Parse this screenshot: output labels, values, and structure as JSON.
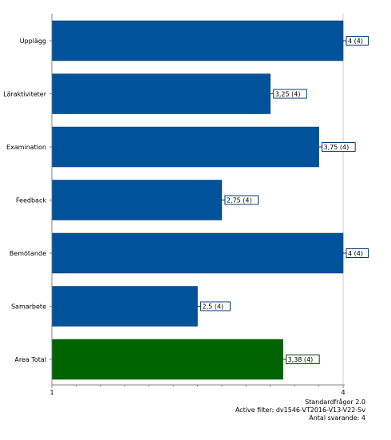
{
  "chart_data": {
    "type": "bar",
    "orientation": "horizontal",
    "categories": [
      "Upplägg",
      "Läraktiviteter",
      "Examination",
      "Feedback",
      "Bemötande",
      "Samarbete",
      "Area Total"
    ],
    "values": [
      4,
      3.25,
      3.75,
      2.75,
      4,
      2.5,
      3.38
    ],
    "data_labels": [
      "4 (4)",
      "3,25 (4)",
      "3,75 (4)",
      "2,75 (4)",
      "4 (4)",
      "2,5 (4)",
      "3,38 (4)"
    ],
    "xlim": [
      1,
      4
    ],
    "x_ticks": [
      "1",
      "4"
    ],
    "grid": true,
    "legend": "none",
    "colors": {
      "bar": "#00529b",
      "total_bar": "#006400",
      "bar_border": "#003a6e",
      "total_border": "#004000",
      "gridline": "#cccccc",
      "axis": "#808080",
      "label_box_blue": "#003a6e",
      "label_box_green": "#004000"
    },
    "highlight_category": "Area Total"
  },
  "footer": {
    "line1": "Standardfrågor 2.0",
    "line2": "Active filter: dv1546-VT2016-V13-V22-Sv",
    "line3": "Antal svarande: 4"
  }
}
